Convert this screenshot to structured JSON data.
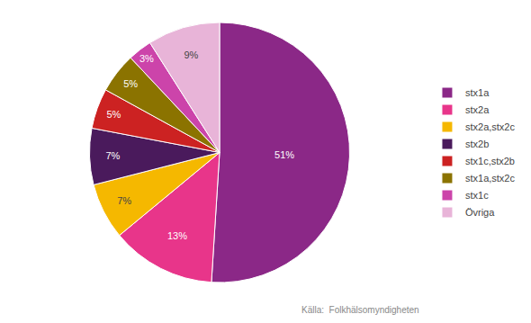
{
  "chart_data": {
    "type": "pie",
    "categories": [
      "stx1a",
      "stx2a",
      "stx2a,stx2c",
      "stx2b",
      "stx1c,stx2b",
      "stx1a,stx2c",
      "stx1c",
      "Övriga"
    ],
    "values": [
      51,
      13,
      7,
      7,
      5,
      5,
      3,
      9
    ],
    "value_labels": [
      "51%",
      "13%",
      "7%",
      "7%",
      "5%",
      "5%",
      "3%",
      "9%"
    ],
    "colors": [
      "#8B2887",
      "#E8358A",
      "#F5B800",
      "#4A1A5C",
      "#CC2222",
      "#8B7300",
      "#CC44AA",
      "#E8B4D8"
    ],
    "data_labels": true,
    "legend": "right",
    "annotations": [
      "Källa:  Folkhälsomyndigheten"
    ]
  }
}
